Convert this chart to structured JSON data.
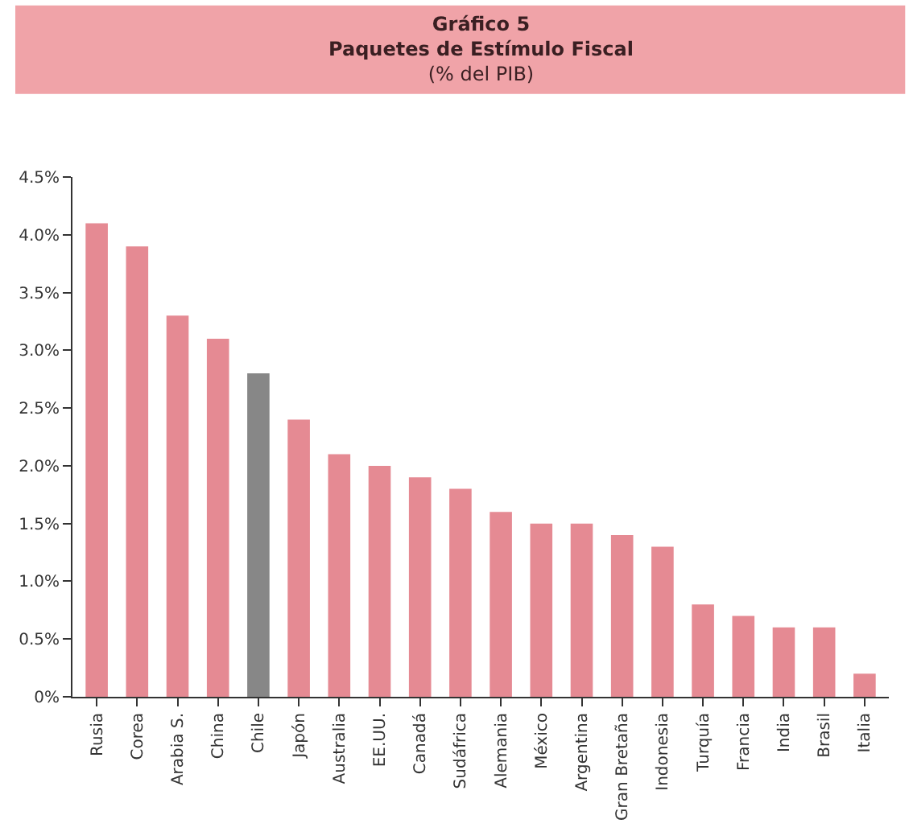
{
  "chart_data": {
    "type": "bar",
    "title": "Gráfico 5\nPaquetes de Estímulo Fiscal",
    "subtitle": "(% del PIB)",
    "categories": [
      "Rusia",
      "Corea",
      "Arabia S.",
      "China",
      "Chile",
      "Japón",
      "Australia",
      "EE.UU.",
      "Canadá",
      "Sudáfrica",
      "Alemania",
      "México",
      "Argentina",
      "Gran Bretaña",
      "Indonesia",
      "Turquía",
      "Francia",
      "India",
      "Brasil",
      "Italia"
    ],
    "values": [
      4.1,
      3.9,
      3.3,
      3.1,
      2.8,
      2.4,
      2.1,
      2.0,
      1.9,
      1.8,
      1.6,
      1.5,
      1.5,
      1.4,
      1.3,
      0.8,
      0.7,
      0.6,
      0.6,
      0.2
    ],
    "colors": [
      "#e58a93",
      "#e58a93",
      "#e58a93",
      "#e58a93",
      "#878787",
      "#e58a93",
      "#e58a93",
      "#e58a93",
      "#e58a93",
      "#e58a93",
      "#e58a93",
      "#e58a93",
      "#e58a93",
      "#e58a93",
      "#e58a93",
      "#e58a93",
      "#e58a93",
      "#e58a93",
      "#e58a93",
      "#e58a93"
    ],
    "ylim": [
      0,
      4.5
    ],
    "yticks": [
      {
        "value": 0,
        "label": "0%"
      },
      {
        "value": 0.5,
        "label": "0.5%"
      },
      {
        "value": 1.0,
        "label": "1.0%"
      },
      {
        "value": 1.5,
        "label": "1.5%"
      },
      {
        "value": 2.0,
        "label": "2.0%"
      },
      {
        "value": 2.5,
        "label": "2.5%"
      },
      {
        "value": 3.0,
        "label": "3.0%"
      },
      {
        "value": 3.5,
        "label": "3.5%"
      },
      {
        "value": 4.0,
        "label": "4.0%"
      },
      {
        "value": 4.5,
        "label": "4.5%"
      }
    ]
  }
}
